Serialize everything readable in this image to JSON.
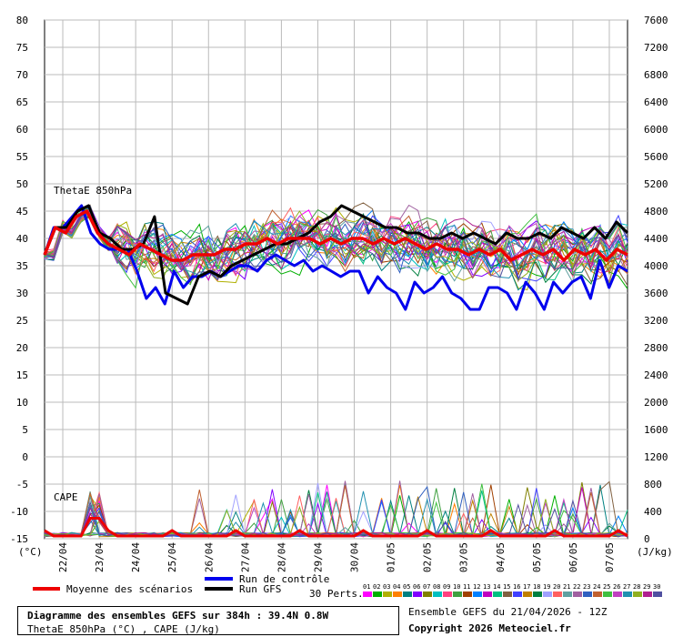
{
  "chart_data": {
    "type": "line",
    "title": "Diagramme des ensembles GEFS sur 384h : 39.4N 0.8W",
    "subtitle": "ThetaE 850hPa (°C) , CAPE (J/kg)",
    "left_axis": {
      "unit": "(°C)",
      "ylim": [
        -15,
        80
      ],
      "ticks": [
        -15,
        -10,
        -5,
        0,
        5,
        10,
        15,
        20,
        25,
        30,
        35,
        40,
        45,
        50,
        55,
        60,
        65,
        70,
        75,
        80
      ]
    },
    "right_axis": {
      "unit": "(J/kg)",
      "ylim": [
        0,
        7600
      ],
      "ticks": [
        0,
        400,
        800,
        1200,
        1600,
        2000,
        2400,
        2800,
        3200,
        3600,
        4000,
        4400,
        4800,
        5200,
        5600,
        6000,
        6400,
        6800,
        7200,
        7600
      ]
    },
    "x_ticks": [
      "22/04",
      "23/04",
      "24/04",
      "25/04",
      "26/04",
      "27/04",
      "28/04",
      "29/04",
      "30/04",
      "01/05",
      "02/05",
      "03/05",
      "04/05",
      "05/05",
      "06/05",
      "07/05"
    ],
    "x_range": [
      "21/04 12Z",
      "07/05 12Z"
    ],
    "panel_labels": {
      "thetae": "ThetaE 850hPa",
      "cape": "CAPE"
    },
    "grid": true,
    "mean_series": {
      "name": "Moyenne des scénarios",
      "color": "#ee0000",
      "values": [
        37,
        42,
        41,
        44,
        45,
        41,
        39,
        38,
        37,
        39,
        38,
        37,
        36,
        36,
        37,
        37,
        37,
        38,
        38,
        39,
        39,
        40,
        39,
        40,
        40,
        40,
        39,
        40,
        39,
        40,
        40,
        39,
        40,
        39,
        40,
        39,
        38,
        39,
        38,
        38,
        37,
        38,
        37,
        38,
        36,
        37,
        38,
        37,
        38,
        36,
        38,
        37,
        38,
        36,
        38,
        37
      ]
    },
    "control_series": {
      "name": "Run de contrôle",
      "color": "#0000ee",
      "values": [
        37,
        42,
        42,
        44,
        46,
        41,
        39,
        38,
        38,
        38,
        34,
        29,
        31,
        28,
        34,
        31,
        33,
        33,
        34,
        33,
        34,
        35,
        35,
        34,
        36,
        37,
        36,
        35,
        36,
        34,
        35,
        34,
        33,
        34,
        34,
        30,
        33,
        31,
        30,
        27,
        32,
        30,
        31,
        33,
        30,
        29,
        27,
        27,
        31,
        31,
        30,
        27,
        32,
        30,
        27,
        32,
        30,
        32,
        33,
        29,
        36,
        31,
        35,
        34
      ]
    },
    "gfs_series": {
      "name": "Run GFS",
      "color": "#000000",
      "values": [
        37,
        42,
        42,
        45,
        46,
        41,
        40,
        38,
        38,
        39,
        44,
        30,
        29,
        28,
        33,
        34,
        33,
        35,
        36,
        37,
        38,
        39,
        39,
        40,
        41,
        43,
        44,
        46,
        45,
        44,
        43,
        42,
        42,
        41,
        41,
        40,
        40,
        41,
        40,
        41,
        40,
        39,
        41,
        40,
        40,
        41,
        40,
        42,
        41,
        40,
        42,
        40,
        43,
        41
      ]
    },
    "perturbations_label": "30 Perts.",
    "perturbation_colors": [
      "#ff00ff",
      "#00b000",
      "#b0b000",
      "#ff8000",
      "#008080",
      "#8000ff",
      "#808000",
      "#00c0c0",
      "#ff4080",
      "#40a040",
      "#a04000",
      "#0080ff",
      "#c000c0",
      "#00c080",
      "#806040",
      "#4040ff",
      "#c08000",
      "#008040",
      "#a0a0ff",
      "#ff6060",
      "#60a0a0",
      "#a060a0",
      "#3060c0",
      "#c06030",
      "#40c040",
      "#c040c0",
      "#2090b0",
      "#90b020",
      "#b02090",
      "#5050a0"
    ],
    "perturbation_numbers": [
      "01",
      "02",
      "03",
      "04",
      "05",
      "06",
      "07",
      "08",
      "09",
      "10",
      "11",
      "12",
      "13",
      "14",
      "15",
      "16",
      "17",
      "18",
      "19",
      "20",
      "21",
      "22",
      "23",
      "24",
      "25",
      "26",
      "27",
      "28",
      "29",
      "30"
    ]
  },
  "info": {
    "title": "Diagramme des ensembles GEFS sur 384h : 39.4N 0.8W",
    "subtitle": "ThetaE 850hPa (°C) , CAPE (J/kg)",
    "run": "Ensemble GEFS du 21/04/2026 - 12Z",
    "copyright": "Copyright 2026 Meteociel.fr"
  },
  "legend": {
    "mean": "Moyenne des scénarios",
    "control": "Run de contrôle",
    "gfs": "Run GFS",
    "perts": "30 Perts."
  }
}
